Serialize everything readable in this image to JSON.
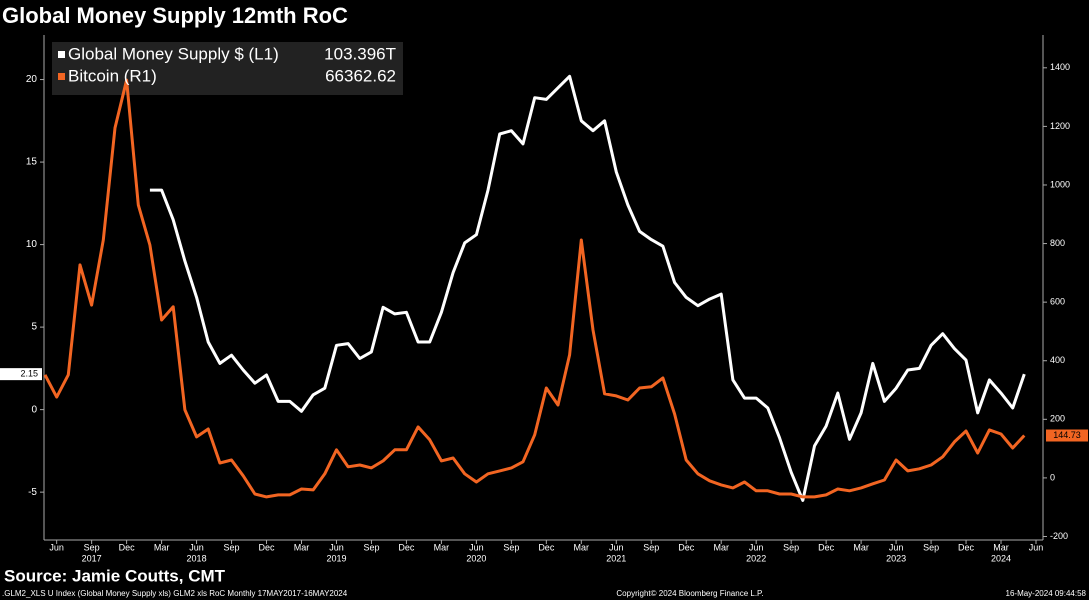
{
  "chart_data": {
    "type": "line",
    "title": "Global Money Supply 12mth RoC",
    "source": "Source: Jamie Coutts, CMT",
    "footer_left": ".GLM2_XLS U Index (Global Money Supply xls) GLM2 xls RoC  Monthly 17MAY2017-16MAY2024",
    "footer_center": "Copyright© 2024 Bloomberg Finance L.P.",
    "footer_right": "16-May-2024 09:44:58",
    "x": [
      "2017-05",
      "2017-06",
      "2017-07",
      "2017-08",
      "2017-09",
      "2017-10",
      "2017-11",
      "2017-12",
      "2018-01",
      "2018-02",
      "2018-03",
      "2018-04",
      "2018-05",
      "2018-06",
      "2018-07",
      "2018-08",
      "2018-09",
      "2018-10",
      "2018-11",
      "2018-12",
      "2019-01",
      "2019-02",
      "2019-03",
      "2019-04",
      "2019-05",
      "2019-06",
      "2019-07",
      "2019-08",
      "2019-09",
      "2019-10",
      "2019-11",
      "2019-12",
      "2020-01",
      "2020-02",
      "2020-03",
      "2020-04",
      "2020-05",
      "2020-06",
      "2020-07",
      "2020-08",
      "2020-09",
      "2020-10",
      "2020-11",
      "2020-12",
      "2021-01",
      "2021-02",
      "2021-03",
      "2021-04",
      "2021-05",
      "2021-06",
      "2021-07",
      "2021-08",
      "2021-09",
      "2021-10",
      "2021-11",
      "2021-12",
      "2022-01",
      "2022-02",
      "2022-03",
      "2022-04",
      "2022-05",
      "2022-06",
      "2022-07",
      "2022-08",
      "2022-09",
      "2022-10",
      "2022-11",
      "2022-12",
      "2023-01",
      "2023-02",
      "2023-03",
      "2023-04",
      "2023-05",
      "2023-06",
      "2023-07",
      "2023-08",
      "2023-09",
      "2023-10",
      "2023-11",
      "2023-12",
      "2024-01",
      "2024-02",
      "2024-03",
      "2024-04",
      "2024-05"
    ],
    "xlim": [
      "2017-05",
      "2024-06"
    ],
    "xticks": [
      {
        "value": "2017-06",
        "label": "Jun"
      },
      {
        "value": "2017-09",
        "label": "Sep"
      },
      {
        "value": "2017-12",
        "label": "Dec"
      },
      {
        "value": "2018-03",
        "label": "Mar"
      },
      {
        "value": "2018-06",
        "label": "Jun"
      },
      {
        "value": "2018-09",
        "label": "Sep"
      },
      {
        "value": "2018-12",
        "label": "Dec"
      },
      {
        "value": "2019-03",
        "label": "Mar"
      },
      {
        "value": "2019-06",
        "label": "Jun"
      },
      {
        "value": "2019-09",
        "label": "Sep"
      },
      {
        "value": "2019-12",
        "label": "Dec"
      },
      {
        "value": "2020-03",
        "label": "Mar"
      },
      {
        "value": "2020-06",
        "label": "Jun"
      },
      {
        "value": "2020-09",
        "label": "Sep"
      },
      {
        "value": "2020-12",
        "label": "Dec"
      },
      {
        "value": "2021-03",
        "label": "Mar"
      },
      {
        "value": "2021-06",
        "label": "Jun"
      },
      {
        "value": "2021-09",
        "label": "Sep"
      },
      {
        "value": "2021-12",
        "label": "Dec"
      },
      {
        "value": "2022-03",
        "label": "Mar"
      },
      {
        "value": "2022-06",
        "label": "Jun"
      },
      {
        "value": "2022-09",
        "label": "Sep"
      },
      {
        "value": "2022-12",
        "label": "Dec"
      },
      {
        "value": "2023-03",
        "label": "Mar"
      },
      {
        "value": "2023-06",
        "label": "Jun"
      },
      {
        "value": "2023-09",
        "label": "Sep"
      },
      {
        "value": "2023-12",
        "label": "Dec"
      },
      {
        "value": "2024-03",
        "label": "Mar"
      },
      {
        "value": "2024-06",
        "label": "Jun"
      }
    ],
    "year_labels": [
      {
        "value": "2017-09",
        "label": "2017"
      },
      {
        "value": "2018-06",
        "label": "2018"
      },
      {
        "value": "2019-06",
        "label": "2019"
      },
      {
        "value": "2020-06",
        "label": "2020"
      },
      {
        "value": "2021-06",
        "label": "2021"
      },
      {
        "value": "2022-06",
        "label": "2022"
      },
      {
        "value": "2023-06",
        "label": "2023"
      },
      {
        "value": "2024-03",
        "label": "2024"
      }
    ],
    "ylim": [
      -7.9,
      22.7
    ],
    "yticks": [
      -5,
      0,
      5,
      10,
      15,
      20
    ],
    "y2lim": [
      -212,
      1512
    ],
    "y2ticks": [
      -200,
      0,
      200,
      400,
      600,
      800,
      1000,
      1200,
      1400
    ],
    "series": [
      {
        "name": "Global Money Supply $ (L1)",
        "legend_value": "103.396T",
        "color": "#ffffff",
        "axis": "y",
        "values": [
          null,
          null,
          null,
          null,
          null,
          null,
          null,
          null,
          null,
          13.3,
          13.3,
          11.5,
          9.0,
          6.8,
          4.1,
          2.8,
          3.3,
          2.4,
          1.6,
          2.1,
          0.5,
          0.5,
          -0.1,
          0.9,
          1.3,
          3.9,
          4.0,
          3.1,
          3.5,
          6.2,
          5.8,
          5.9,
          4.1,
          4.1,
          5.9,
          8.3,
          10.1,
          10.6,
          13.3,
          16.7,
          16.9,
          16.1,
          18.9,
          18.8,
          19.5,
          20.2,
          17.5,
          16.9,
          17.5,
          14.4,
          12.4,
          10.8,
          10.3,
          9.9,
          7.7,
          6.8,
          6.3,
          6.7,
          7.0,
          1.8,
          0.7,
          0.7,
          0.1,
          -1.7,
          -3.8,
          -5.5,
          -2.2,
          -1.0,
          1.0,
          -1.8,
          -0.2,
          2.8,
          0.5,
          1.3,
          2.4,
          2.5,
          3.9,
          4.6,
          3.7,
          3.0,
          -0.2,
          1.8,
          1.0,
          0.1,
          2.15
        ]
      },
      {
        "name": "Bitcoin (R1)",
        "legend_value": 66362.62,
        "color": "#f26522",
        "axis": "y2",
        "values": [
          352,
          276,
          352,
          727,
          590,
          812,
          1195,
          1358,
          932,
          795,
          539,
          584,
          232,
          140,
          167,
          51,
          61,
          7,
          -55,
          -65,
          -58,
          -58,
          -38,
          -41,
          14,
          96,
          38,
          44,
          34,
          58,
          96,
          96,
          174,
          130,
          58,
          68,
          14,
          -14,
          14,
          24,
          34,
          55,
          147,
          307,
          249,
          420,
          812,
          505,
          287,
          280,
          266,
          307,
          311,
          341,
          218,
          61,
          14,
          -10,
          -24,
          -34,
          -14,
          -44,
          -44,
          -55,
          -55,
          -65,
          -65,
          -58,
          -38,
          -44,
          -34,
          -20,
          -7,
          61,
          24,
          31,
          44,
          72,
          123,
          160,
          85,
          164,
          150,
          102,
          144.73
        ]
      }
    ]
  }
}
